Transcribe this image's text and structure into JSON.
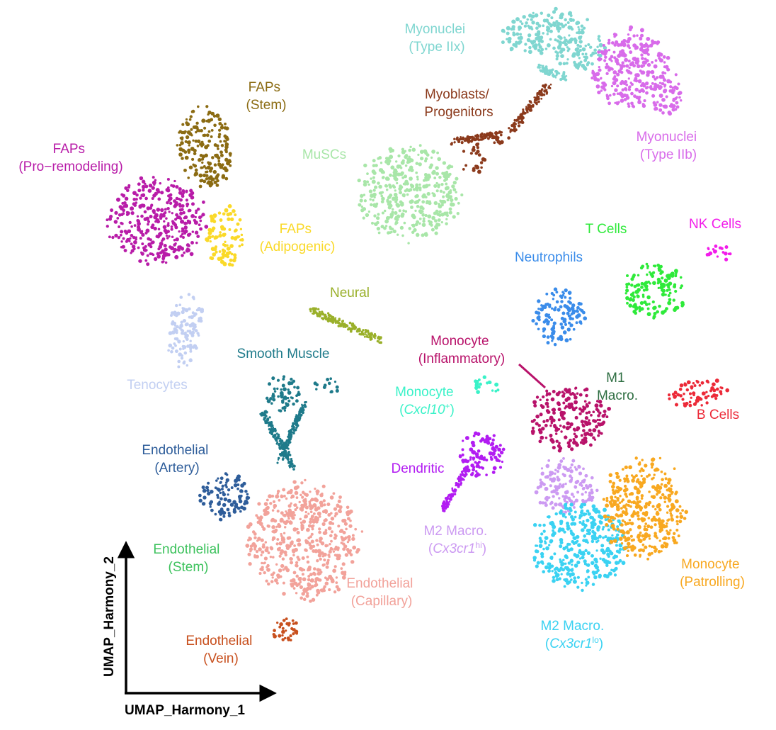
{
  "chart_data": {
    "type": "scatter",
    "axes": {
      "xlabel": "UMAP_Harmony_1",
      "ylabel": "UMAP_Harmony_2",
      "ticks": false,
      "grid": false
    },
    "clusters": [
      {
        "id": "myonuclei-iix",
        "lines": [
          "Myonuclei",
          "(Type IIx)"
        ],
        "color": "#7FD6D0"
      },
      {
        "id": "myonuclei-iib",
        "lines": [
          "Myonuclei",
          "(Type IIb)"
        ],
        "color": "#D86BEA"
      },
      {
        "id": "myoblasts",
        "lines": [
          "Myoblasts/",
          "Progenitors"
        ],
        "color": "#8B3A1C"
      },
      {
        "id": "muscs",
        "lines": [
          "MuSCs"
        ],
        "color": "#A8E6A8"
      },
      {
        "id": "faps-stem",
        "lines": [
          "FAPs",
          "(Stem)"
        ],
        "color": "#8B6B12"
      },
      {
        "id": "faps-pro",
        "lines": [
          "FAPs",
          "(Pro−remodeling)"
        ],
        "color": "#B81CA8"
      },
      {
        "id": "faps-adipo",
        "lines": [
          "FAPs",
          "(Adipogenic)"
        ],
        "color": "#FAD928"
      },
      {
        "id": "tenocytes",
        "lines": [
          "Tenocytes"
        ],
        "color": "#C2CFF2"
      },
      {
        "id": "neural",
        "lines": [
          "Neural"
        ],
        "color": "#9AB02A"
      },
      {
        "id": "smooth-muscle",
        "lines": [
          "Smooth Muscle"
        ],
        "color": "#1E7A8A"
      },
      {
        "id": "endo-artery",
        "lines": [
          "Endothelial",
          "(Artery)"
        ],
        "color": "#2E5D9A"
      },
      {
        "id": "endo-stem",
        "lines": [
          "Endothelial",
          "(Stem)"
        ],
        "color": "#3CC25C"
      },
      {
        "id": "endo-capillary",
        "lines": [
          "Endothelial",
          "(Capillary)"
        ],
        "color": "#F2A29A"
      },
      {
        "id": "endo-vein",
        "lines": [
          "Endothelial",
          "(Vein)"
        ],
        "color": "#C8501E"
      },
      {
        "id": "t-cells",
        "lines": [
          "T Cells"
        ],
        "color": "#2EEA3A"
      },
      {
        "id": "nk-cells",
        "lines": [
          "NK Cells"
        ],
        "color": "#F21CEA"
      },
      {
        "id": "neutrophils",
        "lines": [
          "Neutrophils"
        ],
        "color": "#3A8CEA"
      },
      {
        "id": "mono-inflam",
        "lines": [
          "Monocyte",
          "(Inflammatory)"
        ],
        "color": "#B8126A"
      },
      {
        "id": "m1-macro",
        "lines": [
          "M1",
          "Macro."
        ],
        "color": "#2E6E42"
      },
      {
        "id": "b-cells",
        "lines": [
          "B Cells"
        ],
        "color": "#EC2A38"
      },
      {
        "id": "mono-cxcl10",
        "lines": [
          "Monocyte",
          "(Cxcl10+)"
        ],
        "color": "#3AF2C8"
      },
      {
        "id": "dendritic",
        "lines": [
          "Dendritic"
        ],
        "color": "#B21CF2"
      },
      {
        "id": "m2-hi",
        "lines": [
          "M2 Macro.",
          "(Cx3cr1hi)"
        ],
        "color": "#CC9AF2"
      },
      {
        "id": "m2-lo",
        "lines": [
          "M2 Macro.",
          "(Cx3cr1lo)"
        ],
        "color": "#3AD2F2"
      },
      {
        "id": "mono-patrol",
        "lines": [
          "Monocyte",
          "(Patrolling)"
        ],
        "color": "#F8A820"
      }
    ]
  }
}
